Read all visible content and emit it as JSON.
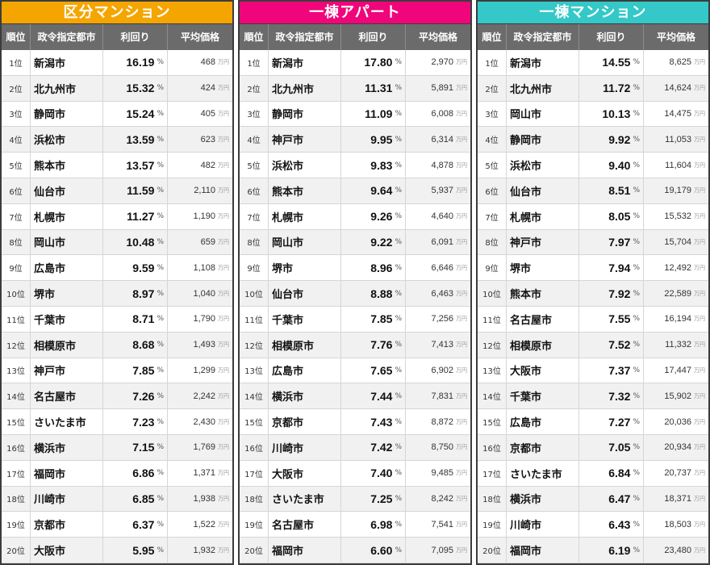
{
  "headers": {
    "rank": "順位",
    "city": "政令指定都市",
    "yield": "利回り",
    "price": "平均価格"
  },
  "units": {
    "yield": "%",
    "price": "万円",
    "rank_suffix": "位"
  },
  "panels": [
    {
      "title": "区分マンション",
      "color": "#f5a500",
      "rows": [
        {
          "rank": "1位",
          "city": "新潟市",
          "yield": "16.19",
          "price": "468"
        },
        {
          "rank": "2位",
          "city": "北九州市",
          "yield": "15.32",
          "price": "424"
        },
        {
          "rank": "3位",
          "city": "静岡市",
          "yield": "15.24",
          "price": "405"
        },
        {
          "rank": "4位",
          "city": "浜松市",
          "yield": "13.59",
          "price": "623"
        },
        {
          "rank": "5位",
          "city": "熊本市",
          "yield": "13.57",
          "price": "482"
        },
        {
          "rank": "6位",
          "city": "仙台市",
          "yield": "11.59",
          "price": "2,110"
        },
        {
          "rank": "7位",
          "city": "札幌市",
          "yield": "11.27",
          "price": "1,190"
        },
        {
          "rank": "8位",
          "city": "岡山市",
          "yield": "10.48",
          "price": "659"
        },
        {
          "rank": "9位",
          "city": "広島市",
          "yield": "9.59",
          "price": "1,108"
        },
        {
          "rank": "10位",
          "city": "堺市",
          "yield": "8.97",
          "price": "1,040"
        },
        {
          "rank": "11位",
          "city": "千葉市",
          "yield": "8.71",
          "price": "1,790"
        },
        {
          "rank": "12位",
          "city": "相模原市",
          "yield": "8.68",
          "price": "1,493"
        },
        {
          "rank": "13位",
          "city": "神戸市",
          "yield": "7.85",
          "price": "1,299"
        },
        {
          "rank": "14位",
          "city": "名古屋市",
          "yield": "7.26",
          "price": "2,242"
        },
        {
          "rank": "15位",
          "city": "さいたま市",
          "yield": "7.23",
          "price": "2,430"
        },
        {
          "rank": "16位",
          "city": "横浜市",
          "yield": "7.15",
          "price": "1,769"
        },
        {
          "rank": "17位",
          "city": "福岡市",
          "yield": "6.86",
          "price": "1,371"
        },
        {
          "rank": "18位",
          "city": "川崎市",
          "yield": "6.85",
          "price": "1,938"
        },
        {
          "rank": "19位",
          "city": "京都市",
          "yield": "6.37",
          "price": "1,522"
        },
        {
          "rank": "20位",
          "city": "大阪市",
          "yield": "5.95",
          "price": "1,932"
        }
      ]
    },
    {
      "title": "一棟アパート",
      "color": "#f0067a",
      "rows": [
        {
          "rank": "1位",
          "city": "新潟市",
          "yield": "17.80",
          "price": "2,970"
        },
        {
          "rank": "2位",
          "city": "北九州市",
          "yield": "11.31",
          "price": "5,891"
        },
        {
          "rank": "3位",
          "city": "静岡市",
          "yield": "11.09",
          "price": "6,008"
        },
        {
          "rank": "4位",
          "city": "神戸市",
          "yield": "9.95",
          "price": "6,314"
        },
        {
          "rank": "5位",
          "city": "浜松市",
          "yield": "9.83",
          "price": "4,878"
        },
        {
          "rank": "6位",
          "city": "熊本市",
          "yield": "9.64",
          "price": "5,937"
        },
        {
          "rank": "7位",
          "city": "札幌市",
          "yield": "9.26",
          "price": "4,640"
        },
        {
          "rank": "8位",
          "city": "岡山市",
          "yield": "9.22",
          "price": "6,091"
        },
        {
          "rank": "9位",
          "city": "堺市",
          "yield": "8.96",
          "price": "6,646"
        },
        {
          "rank": "10位",
          "city": "仙台市",
          "yield": "8.88",
          "price": "6,463"
        },
        {
          "rank": "11位",
          "city": "千葉市",
          "yield": "7.85",
          "price": "7,256"
        },
        {
          "rank": "12位",
          "city": "相模原市",
          "yield": "7.76",
          "price": "7,413"
        },
        {
          "rank": "13位",
          "city": "広島市",
          "yield": "7.65",
          "price": "6,902"
        },
        {
          "rank": "14位",
          "city": "横浜市",
          "yield": "7.44",
          "price": "7,831"
        },
        {
          "rank": "15位",
          "city": "京都市",
          "yield": "7.43",
          "price": "8,872"
        },
        {
          "rank": "16位",
          "city": "川崎市",
          "yield": "7.42",
          "price": "8,750"
        },
        {
          "rank": "17位",
          "city": "大阪市",
          "yield": "7.40",
          "price": "9,485"
        },
        {
          "rank": "18位",
          "city": "さいたま市",
          "yield": "7.25",
          "price": "8,242"
        },
        {
          "rank": "19位",
          "city": "名古屋市",
          "yield": "6.98",
          "price": "7,541"
        },
        {
          "rank": "20位",
          "city": "福岡市",
          "yield": "6.60",
          "price": "7,095"
        }
      ]
    },
    {
      "title": "一棟マンション",
      "color": "#34c8c8",
      "rows": [
        {
          "rank": "1位",
          "city": "新潟市",
          "yield": "14.55",
          "price": "8,625"
        },
        {
          "rank": "2位",
          "city": "北九州市",
          "yield": "11.72",
          "price": "14,624"
        },
        {
          "rank": "3位",
          "city": "岡山市",
          "yield": "10.13",
          "price": "14,475"
        },
        {
          "rank": "4位",
          "city": "静岡市",
          "yield": "9.92",
          "price": "11,053"
        },
        {
          "rank": "5位",
          "city": "浜松市",
          "yield": "9.40",
          "price": "11,604"
        },
        {
          "rank": "6位",
          "city": "仙台市",
          "yield": "8.51",
          "price": "19,179"
        },
        {
          "rank": "7位",
          "city": "札幌市",
          "yield": "8.05",
          "price": "15,532"
        },
        {
          "rank": "8位",
          "city": "神戸市",
          "yield": "7.97",
          "price": "15,704"
        },
        {
          "rank": "9位",
          "city": "堺市",
          "yield": "7.94",
          "price": "12,492"
        },
        {
          "rank": "10位",
          "city": "熊本市",
          "yield": "7.92",
          "price": "22,589"
        },
        {
          "rank": "11位",
          "city": "名古屋市",
          "yield": "7.55",
          "price": "16,194"
        },
        {
          "rank": "12位",
          "city": "相模原市",
          "yield": "7.52",
          "price": "11,332"
        },
        {
          "rank": "13位",
          "city": "大阪市",
          "yield": "7.37",
          "price": "17,447"
        },
        {
          "rank": "14位",
          "city": "千葉市",
          "yield": "7.32",
          "price": "15,902"
        },
        {
          "rank": "15位",
          "city": "広島市",
          "yield": "7.27",
          "price": "20,036"
        },
        {
          "rank": "16位",
          "city": "京都市",
          "yield": "7.05",
          "price": "20,934"
        },
        {
          "rank": "17位",
          "city": "さいたま市",
          "yield": "6.84",
          "price": "20,737"
        },
        {
          "rank": "18位",
          "city": "横浜市",
          "yield": "6.47",
          "price": "18,371"
        },
        {
          "rank": "19位",
          "city": "川崎市",
          "yield": "6.43",
          "price": "18,503"
        },
        {
          "rank": "20位",
          "city": "福岡市",
          "yield": "6.19",
          "price": "23,480"
        }
      ]
    }
  ]
}
